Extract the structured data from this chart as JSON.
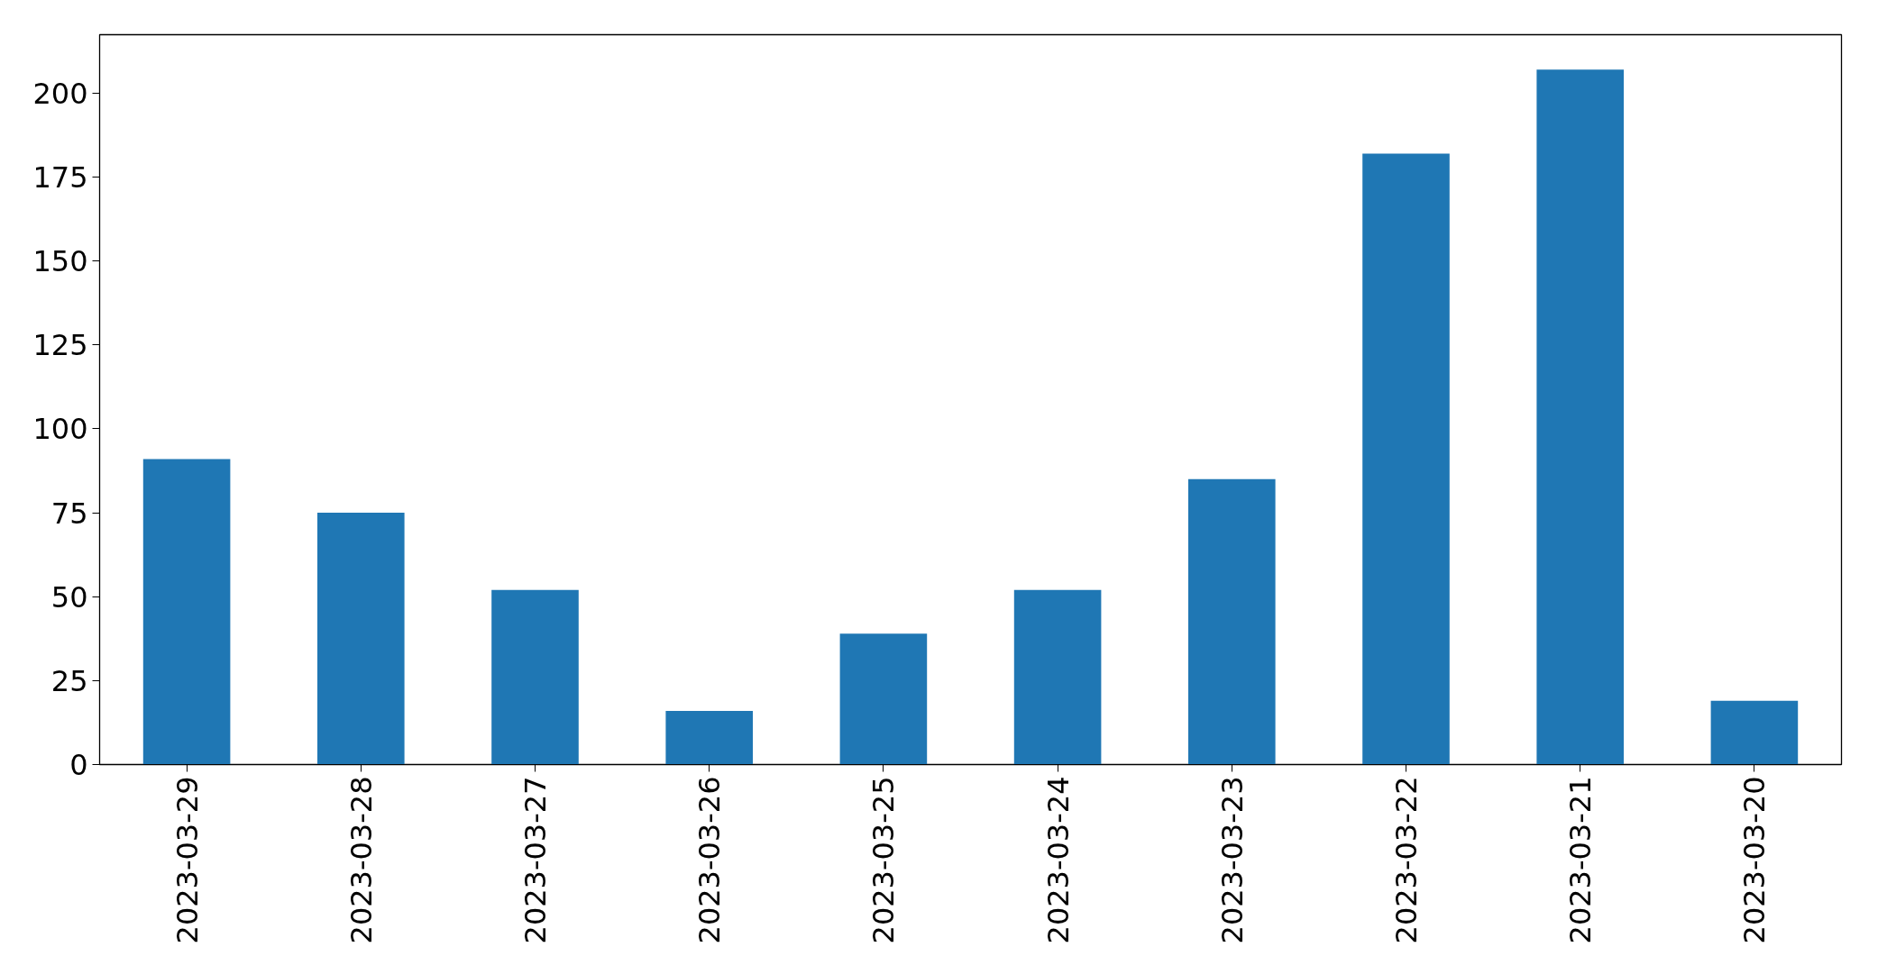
{
  "chart_data": {
    "type": "bar",
    "categories": [
      "2023-03-29",
      "2023-03-28",
      "2023-03-27",
      "2023-03-26",
      "2023-03-25",
      "2023-03-24",
      "2023-03-23",
      "2023-03-22",
      "2023-03-21",
      "2023-03-20"
    ],
    "values": [
      91,
      75,
      52,
      16,
      39,
      52,
      85,
      182,
      207,
      19
    ],
    "color": "#1f77b4",
    "ylim": [
      0,
      217.4
    ],
    "yticks": [
      0,
      25,
      50,
      75,
      100,
      125,
      150,
      175,
      200
    ],
    "grid": false
  }
}
